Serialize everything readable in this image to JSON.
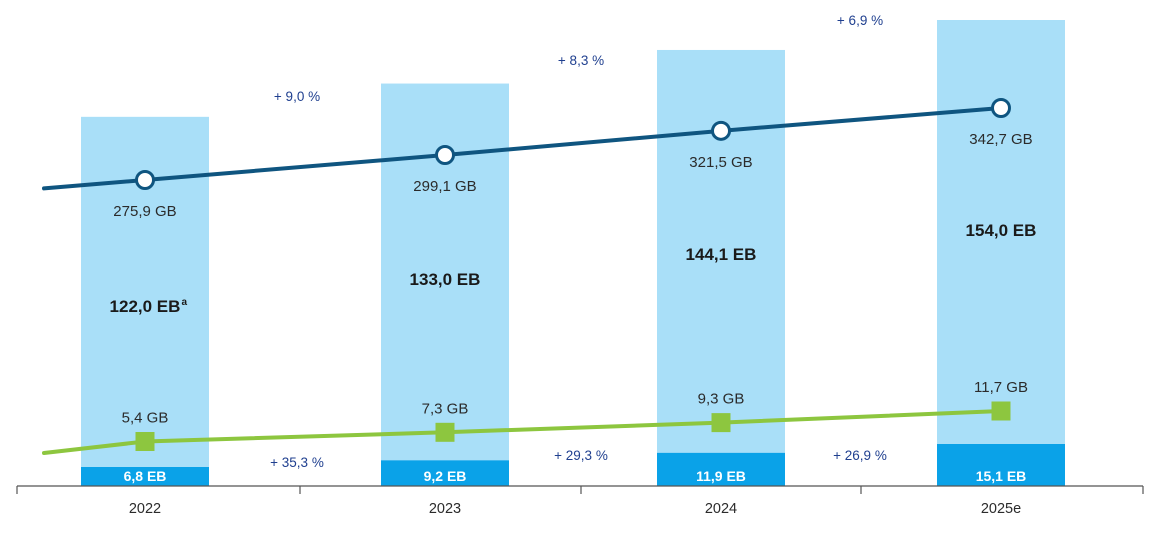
{
  "chart_data": {
    "type": "bar",
    "categories": [
      "2022",
      "2023",
      "2024",
      "2025e"
    ],
    "series": [
      {
        "values": [
          122.0,
          133.0,
          144.1,
          154.0
        ],
        "labels": [
          "122,0 EB",
          "133,0 EB",
          "144,1 EB",
          "154,0 EB"
        ],
        "label_footnotes": [
          "a",
          "",
          "",
          ""
        ],
        "color": "#a9dff8",
        "kind": "bar"
      },
      {
        "values": [
          6.8,
          9.2,
          11.9,
          15.1
        ],
        "labels": [
          "6,8 EB",
          "9,2 EB",
          "11,9 EB",
          "15,1 EB"
        ],
        "color": "#0aa2e8",
        "kind": "bar"
      },
      {
        "values": [
          275.9,
          299.1,
          321.5,
          342.7
        ],
        "labels": [
          "275,9 GB",
          "299,1 GB",
          "321,5 GB",
          "342,7 GB"
        ],
        "color": "#0f5580",
        "kind": "line",
        "marker": "circle"
      },
      {
        "values": [
          5.4,
          7.3,
          9.3,
          11.7
        ],
        "labels": [
          "5,4 GB",
          "7,3 GB",
          "9,3 GB",
          "11,7 GB"
        ],
        "color": "#8dc63f",
        "kind": "line",
        "marker": "square"
      }
    ],
    "growth_labels": {
      "total": [
        "+ 9,0 %",
        "+ 8,3 %",
        "+ 6,9 %"
      ],
      "mobile": [
        "+ 35,3 %",
        "+ 29,3 %",
        "+ 26,9 %"
      ]
    },
    "grid": false
  }
}
